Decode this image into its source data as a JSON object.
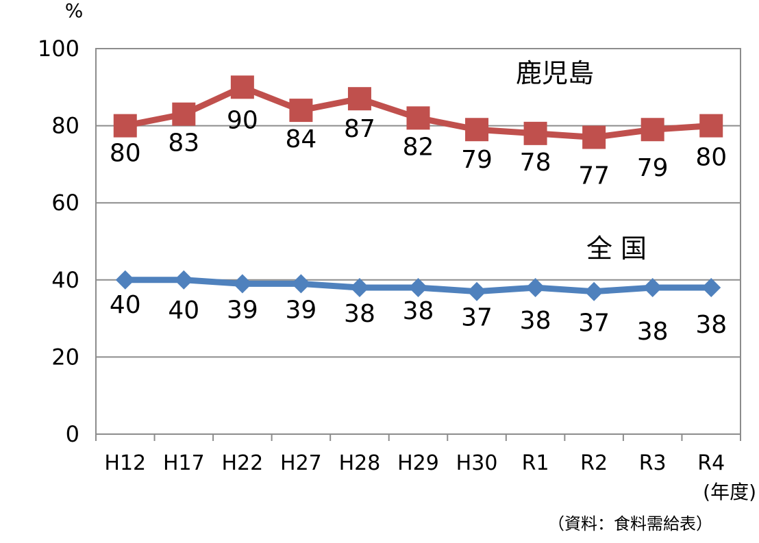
{
  "chart_data": {
    "type": "line",
    "title": "",
    "y_unit": "%",
    "x_unit": "(年度)",
    "source": "（資料：食料需給表）",
    "ylim": [
      0,
      100
    ],
    "yticks": [
      0,
      20,
      40,
      60,
      80,
      100
    ],
    "grid": true,
    "categories": [
      "H12",
      "H17",
      "H22",
      "H27",
      "H28",
      "H29",
      "H30",
      "R1",
      "R2",
      "R3",
      "R4"
    ],
    "series": [
      {
        "name": "鹿児島",
        "color": "#c0504d",
        "marker": "square",
        "values": [
          80,
          83,
          90,
          84,
          87,
          82,
          79,
          78,
          77,
          79,
          80
        ]
      },
      {
        "name": "全 国",
        "color": "#4f81bd",
        "marker": "diamond",
        "values": [
          40,
          40,
          39,
          39,
          38,
          38,
          37,
          38,
          37,
          38,
          38
        ]
      }
    ]
  }
}
